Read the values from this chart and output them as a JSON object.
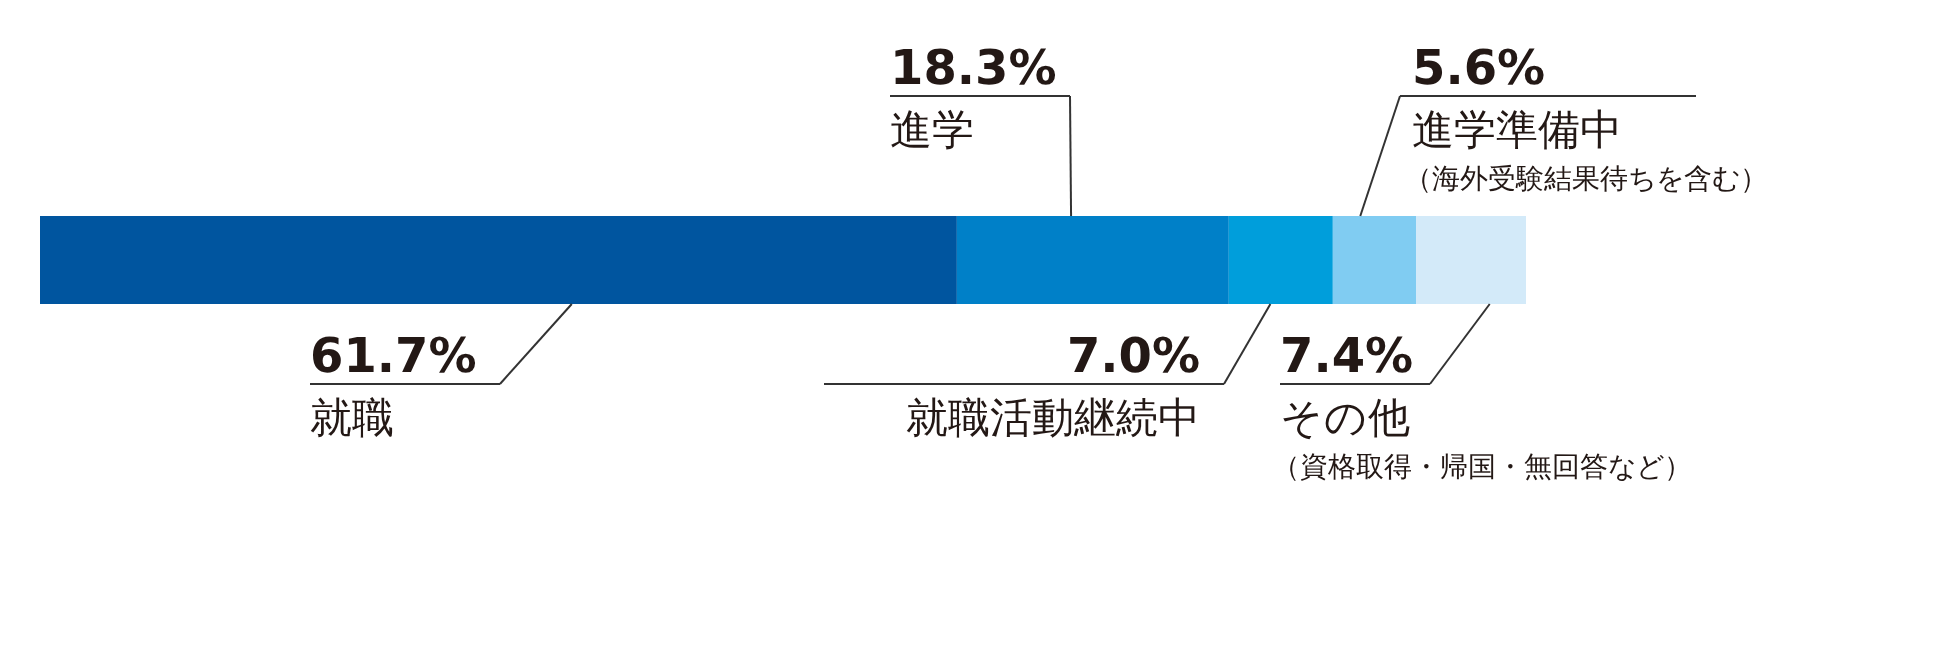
{
  "chart_data": {
    "type": "bar",
    "orientation": "horizontal",
    "stacked": true,
    "categories": [
      null
    ],
    "series": [
      {
        "name": "就職",
        "color": "#00559f",
        "values": [
          61.7
        ],
        "value_labels": [
          "61.7%"
        ]
      },
      {
        "name": "進学",
        "color": "#0080c8",
        "values": [
          18.3
        ],
        "value_labels": [
          "18.3%"
        ]
      },
      {
        "name": "就職活動継続中",
        "color": "#009edb",
        "values": [
          7.0
        ],
        "value_labels": [
          "7.0%"
        ]
      },
      {
        "name": "進学準備中",
        "color": "#80ccf2",
        "values": [
          5.6
        ],
        "value_labels": [
          "5.6%"
        ]
      },
      {
        "name": "その他",
        "color": "#d3eaf9",
        "values": [
          7.4
        ],
        "value_labels": [
          "7.4%"
        ]
      }
    ],
    "annotations": [
      "（海外受験結果待ちを含む）",
      "（資格取得・帰国・無回答など）"
    ]
  }
}
